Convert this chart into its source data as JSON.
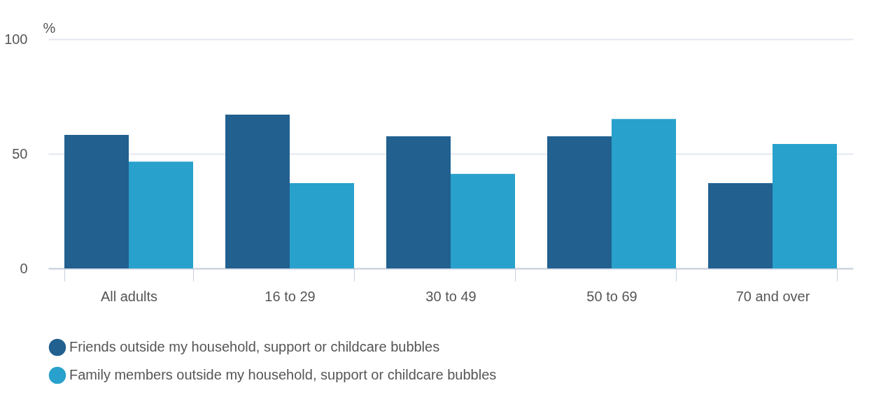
{
  "chart_data": {
    "type": "bar",
    "ylabel": "%",
    "categories": [
      "All adults",
      "16 to 29",
      "30 to 49",
      "50 to 69",
      "70 and over"
    ],
    "series": [
      {
        "name": "Friends outside my household, support or childcare bubbles",
        "color": "#21608f",
        "values": [
          58.2,
          67.1,
          57.6,
          57.6,
          37.2
        ]
      },
      {
        "name": "Family members outside my household, support or childcare bubbles",
        "color": "#28a1cc",
        "values": [
          46.6,
          37.2,
          41.2,
          65.2,
          54.3
        ]
      }
    ],
    "ylim": [
      0,
      100
    ],
    "yticks": [
      0,
      50,
      100
    ],
    "grid": "y",
    "legend": "bottom"
  }
}
